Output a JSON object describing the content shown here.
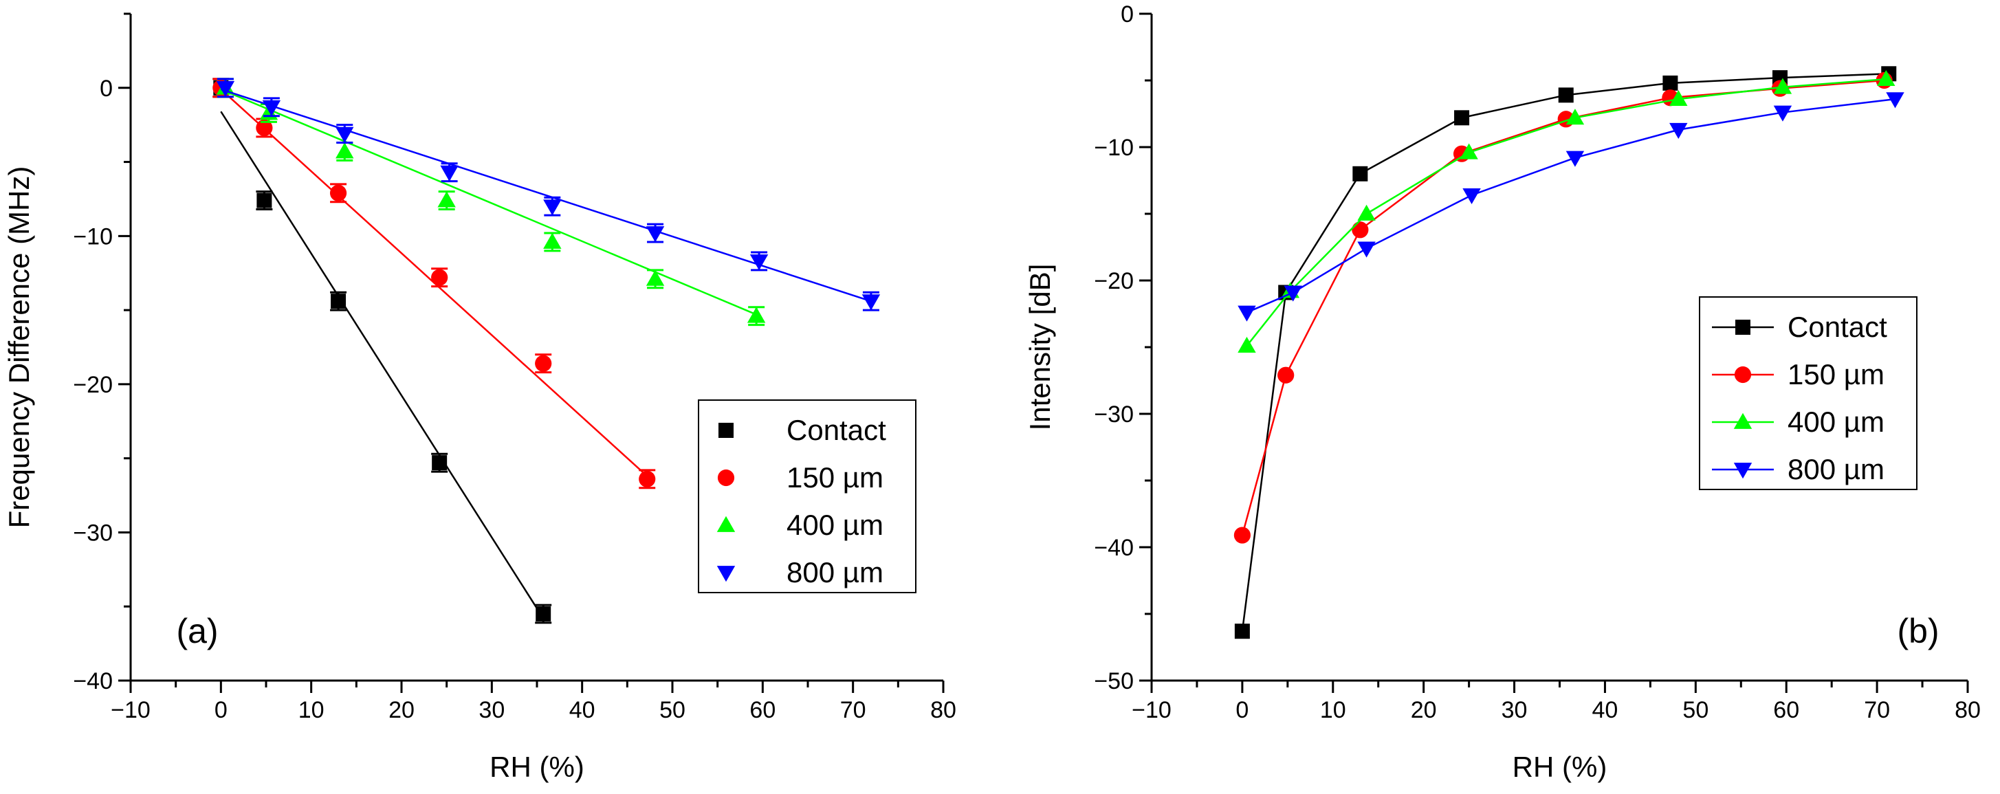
{
  "chart_data": [
    {
      "type": "scatter",
      "panel_label": "(a)",
      "xlabel": "RH (%)",
      "ylabel": "Frequency Difference (MHz)",
      "xlim": [
        -10,
        80
      ],
      "ylim": [
        -40,
        5
      ],
      "xticks": [
        -10,
        0,
        10,
        20,
        30,
        40,
        50,
        60,
        70,
        80
      ],
      "yticks": [
        -40,
        -30,
        -20,
        -10,
        0
      ],
      "xtick_labels": [
        "−10",
        "0",
        "10",
        "20",
        "30",
        "40",
        "50",
        "60",
        "70",
        "80"
      ],
      "ytick_labels": [
        "−40",
        "−30",
        "−20",
        "−10",
        "0"
      ],
      "legend_position": "lower-right",
      "series": [
        {
          "name": "Contact",
          "color": "#000000",
          "marker": "square",
          "x": [
            0,
            4.8,
            13,
            24.2,
            35.7
          ],
          "y": [
            0,
            -7.6,
            -14.4,
            -25.3,
            -35.5
          ],
          "yerr": [
            0.6,
            0.6,
            0.6,
            0.6,
            0.6
          ],
          "fit": [
            [
              0,
              -1.6
            ],
            [
              35.7,
              -35.8
            ]
          ]
        },
        {
          "name": "150 µm",
          "color": "#ff0000",
          "marker": "circle",
          "x": [
            0,
            4.8,
            13,
            24.2,
            35.7,
            47.2
          ],
          "y": [
            0,
            -2.7,
            -7.1,
            -12.8,
            -18.6,
            -26.4
          ],
          "yerr": [
            0.6,
            0.6,
            0.6,
            0.6,
            0.6,
            0.6
          ],
          "fit": [
            [
              0,
              -0.1
            ],
            [
              47.2,
              -26.2
            ]
          ]
        },
        {
          "name": "400 µm",
          "color": "#00ff00",
          "marker": "triangle-up",
          "x": [
            0.5,
            5.3,
            13.7,
            25,
            36.7,
            48.1,
            59.3
          ],
          "y": [
            0,
            -1.7,
            -4.3,
            -7.6,
            -10.4,
            -12.9,
            -15.4
          ],
          "yerr": [
            0.6,
            0.6,
            0.6,
            0.6,
            0.6,
            0.6,
            0.6
          ],
          "fit": [
            [
              0,
              -0.1
            ],
            [
              59.3,
              -15.3
            ]
          ]
        },
        {
          "name": "800 µm",
          "color": "#0000ff",
          "marker": "triangle-down",
          "x": [
            0.5,
            5.6,
            13.7,
            25.3,
            36.7,
            48.1,
            59.6,
            72
          ],
          "y": [
            0,
            -1.3,
            -3.1,
            -5.7,
            -8,
            -9.8,
            -11.7,
            -14.4
          ],
          "yerr": [
            0.6,
            0.6,
            0.6,
            0.6,
            0.6,
            0.6,
            0.6,
            0.6
          ],
          "fit": [
            [
              0,
              -0.1
            ],
            [
              72,
              -14.4
            ]
          ]
        }
      ]
    },
    {
      "type": "line",
      "panel_label": "(b)",
      "xlabel": "RH (%)",
      "ylabel": "Intensity [dB]",
      "xlim": [
        -10,
        80
      ],
      "ylim": [
        -50,
        0
      ],
      "xticks": [
        -10,
        0,
        10,
        20,
        30,
        40,
        50,
        60,
        70,
        80
      ],
      "yticks": [
        -50,
        -40,
        -30,
        -20,
        -10,
        0
      ],
      "xtick_labels": [
        "−10",
        "0",
        "10",
        "20",
        "30",
        "40",
        "50",
        "60",
        "70",
        "80"
      ],
      "ytick_labels": [
        "−50",
        "−40",
        "−30",
        "−20",
        "−10",
        "0"
      ],
      "legend_position": "center-right",
      "series": [
        {
          "name": "Contact",
          "color": "#000000",
          "marker": "square",
          "x": [
            0,
            4.8,
            13,
            24.2,
            35.7,
            47.2,
            59.3,
            71.3
          ],
          "y": [
            -46.3,
            -20.9,
            -12,
            -7.8,
            -6.1,
            -5.2,
            -4.8,
            -4.5
          ]
        },
        {
          "name": "150 µm",
          "color": "#ff0000",
          "marker": "circle",
          "x": [
            0,
            4.8,
            13,
            24.2,
            35.7,
            47.2,
            59.3,
            70.8
          ],
          "y": [
            -39.1,
            -27.1,
            -16.2,
            -10.5,
            -7.9,
            -6.3,
            -5.6,
            -5
          ]
        },
        {
          "name": "400 µm",
          "color": "#00ff00",
          "marker": "triangle-up",
          "x": [
            0.5,
            5.3,
            13.7,
            25,
            36.7,
            48.1,
            59.6,
            71
          ],
          "y": [
            -24.9,
            -20.8,
            -15,
            -10.4,
            -7.8,
            -6.4,
            -5.5,
            -4.9
          ]
        },
        {
          "name": "800 µm",
          "color": "#0000ff",
          "marker": "triangle-down",
          "x": [
            0.5,
            5.6,
            13.7,
            25.3,
            36.7,
            48.1,
            59.6,
            72
          ],
          "y": [
            -22.4,
            -20.9,
            -17.6,
            -13.6,
            -10.8,
            -8.7,
            -7.4,
            -6.4
          ]
        }
      ]
    }
  ]
}
